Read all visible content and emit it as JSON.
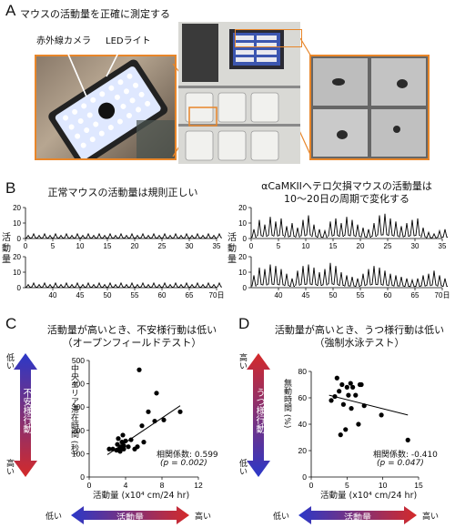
{
  "panelA": {
    "letter": "A",
    "title": "マウスの活動量を正確に測定する",
    "label_camera": "赤外線カメラ",
    "label_led": "LEDライト"
  },
  "panelB": {
    "letter": "B",
    "left_title": "正常マウスの活動量は規則正しい",
    "right_title_line1": "αCaMKIIヘテロ欠損マウスの活動量は",
    "right_title_line2": "10～20日の周期で変化する",
    "ylabel": "活動量",
    "day_unit": "日"
  },
  "panelC": {
    "letter": "C",
    "title_line1": "活動量が高いとき、不安様行動は低い",
    "title_line2": "（オープンフィールドテスト）",
    "ylabel": "中央エリア滞在時間 (秒)",
    "xlabel": "活動量 (x10⁴ cm/24 hr)",
    "stats_line1": "相関係数: 0.599",
    "stats_line2": "(p = 0.002)",
    "side_label": "不安様行動",
    "side_low": "低い",
    "side_high": "高い",
    "bottom_label": "活動量",
    "bottom_low": "低い",
    "bottom_high": "高い"
  },
  "panelD": {
    "letter": "D",
    "title_line1": "活動量が高いとき、うつ様行動は低い",
    "title_line2": "（強制水泳テスト）",
    "ylabel": "無動時間 (%)",
    "xlabel": "活動量 (x10⁴ cm/24 hr)",
    "stats_line1": "相関係数: -0.410",
    "stats_line2": "(p = 0.047)",
    "side_label": "うつ様行動",
    "side_high": "高い",
    "side_low": "低い",
    "bottom_label": "活動量",
    "bottom_low": "低い",
    "bottom_high": "高い"
  },
  "colors": {
    "orange": "#e8862a",
    "red": "#d42a2a",
    "blue": "#2b38c8"
  },
  "chart_data": [
    {
      "id": "B-normal-days-0-35",
      "type": "area",
      "ylabel": "活動量",
      "x_ticks": [
        0,
        5,
        10,
        15,
        20,
        25,
        30,
        35
      ],
      "y_ticks": [
        0,
        10,
        20
      ],
      "ylim": [
        0,
        20
      ],
      "series": [
        {
          "values": [
            2,
            3,
            2,
            3,
            2,
            3,
            2,
            3,
            2,
            3,
            2,
            3,
            2,
            3,
            2,
            3,
            2,
            3,
            2,
            3,
            2,
            3,
            2,
            3,
            2,
            3,
            2,
            3,
            2,
            3,
            2,
            3,
            2,
            3,
            2,
            3
          ]
        }
      ]
    },
    {
      "id": "B-normal-days-35-70",
      "type": "area",
      "ylabel": "活動量",
      "x_ticks": [
        40,
        45,
        50,
        55,
        60,
        65,
        70
      ],
      "x_unit": "日",
      "y_ticks": [
        0,
        10,
        20
      ],
      "ylim": [
        0,
        20
      ],
      "series": [
        {
          "values": [
            2,
            3,
            2,
            3,
            2,
            3,
            2,
            3,
            2,
            3,
            2,
            3,
            2,
            3,
            2,
            3,
            2,
            3,
            2,
            3,
            2,
            3,
            2,
            3,
            2,
            3,
            2,
            3,
            2,
            3,
            2,
            3,
            2,
            3,
            2,
            3
          ]
        }
      ]
    },
    {
      "id": "B-mutant-days-0-35",
      "type": "area",
      "ylabel": "活動量",
      "x_ticks": [
        0,
        5,
        10,
        15,
        20,
        25,
        30,
        35
      ],
      "y_ticks": [
        0,
        10,
        20
      ],
      "ylim": [
        0,
        20
      ],
      "series": [
        {
          "values": [
            6,
            12,
            9,
            14,
            11,
            13,
            8,
            10,
            7,
            12,
            15,
            9,
            6,
            5,
            11,
            13,
            10,
            14,
            12,
            9,
            7,
            6,
            10,
            15,
            16,
            13,
            11,
            8,
            10,
            12,
            13,
            7,
            4,
            3,
            5,
            6
          ]
        }
      ]
    },
    {
      "id": "B-mutant-days-35-70",
      "type": "area",
      "ylabel": "活動量",
      "x_ticks": [
        40,
        45,
        50,
        55,
        60,
        65,
        70
      ],
      "x_unit": "日",
      "y_ticks": [
        0,
        10,
        20
      ],
      "ylim": [
        0,
        20
      ],
      "series": [
        {
          "values": [
            8,
            13,
            12,
            15,
            14,
            12,
            9,
            6,
            11,
            14,
            15,
            13,
            10,
            12,
            16,
            14,
            10,
            8,
            7,
            6,
            9,
            12,
            14,
            13,
            11,
            9,
            8,
            7,
            6,
            5,
            6,
            8,
            9,
            11,
            8,
            6
          ]
        }
      ]
    },
    {
      "id": "C",
      "type": "scatter",
      "xlabel": "活動量 (x10⁴ cm/24 hr)",
      "ylabel": "中央エリア滞在時間 (秒)",
      "xlim": [
        0,
        12
      ],
      "ylim": [
        0,
        500
      ],
      "x_ticks": [
        0,
        4,
        8,
        12
      ],
      "y_ticks": [
        0,
        100,
        200,
        300,
        400,
        500
      ],
      "x": [
        2.2,
        2.6,
        3.0,
        3.1,
        3.2,
        3.4,
        3.4,
        3.5,
        3.6,
        3.7,
        3.8,
        3.8,
        4.0,
        4.3,
        4.6,
        5.0,
        5.3,
        5.5,
        5.8,
        6.0,
        6.5,
        7.2,
        7.4,
        8.2,
        10.0
      ],
      "y": [
        120,
        120,
        115,
        140,
        165,
        110,
        125,
        130,
        150,
        180,
        120,
        135,
        155,
        130,
        160,
        120,
        130,
        460,
        220,
        150,
        280,
        240,
        360,
        245,
        280
      ],
      "trendline": {
        "x": [
          2.0,
          10.0
        ],
        "y": [
          96,
          306
        ]
      }
    },
    {
      "id": "D",
      "type": "scatter",
      "xlabel": "活動量 (x10⁴ cm/24 hr)",
      "ylabel": "無動時間 (%)",
      "xlim": [
        0,
        15
      ],
      "ylim": [
        0,
        80
      ],
      "x_ticks": [
        0,
        5,
        10,
        15
      ],
      "y_ticks": [
        0,
        20,
        40,
        60,
        80
      ],
      "x": [
        2.8,
        3.3,
        3.6,
        3.9,
        4.1,
        4.3,
        4.5,
        4.8,
        5.0,
        5.2,
        5.5,
        5.6,
        5.8,
        6.2,
        6.6,
        6.8,
        7.0,
        7.4,
        9.8,
        13.5
      ],
      "y": [
        58,
        61,
        75,
        65,
        32,
        70,
        55,
        36,
        68,
        62,
        71,
        52,
        68,
        62,
        40,
        70,
        70,
        54,
        47,
        28
      ],
      "trendline": {
        "x": [
          2.5,
          13.5
        ],
        "y": [
          62,
          47
        ]
      }
    }
  ]
}
